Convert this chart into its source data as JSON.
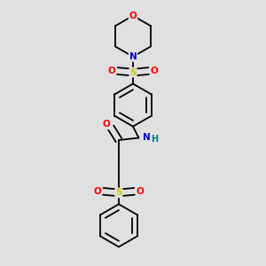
{
  "bg_color": "#e0e0e0",
  "bond_color": "#000000",
  "atom_colors": {
    "O": "#ff0000",
    "N": "#0000cc",
    "S": "#cccc00",
    "H": "#008080",
    "C": "#000000"
  },
  "figsize": [
    3.0,
    3.0
  ],
  "dpi": 100
}
